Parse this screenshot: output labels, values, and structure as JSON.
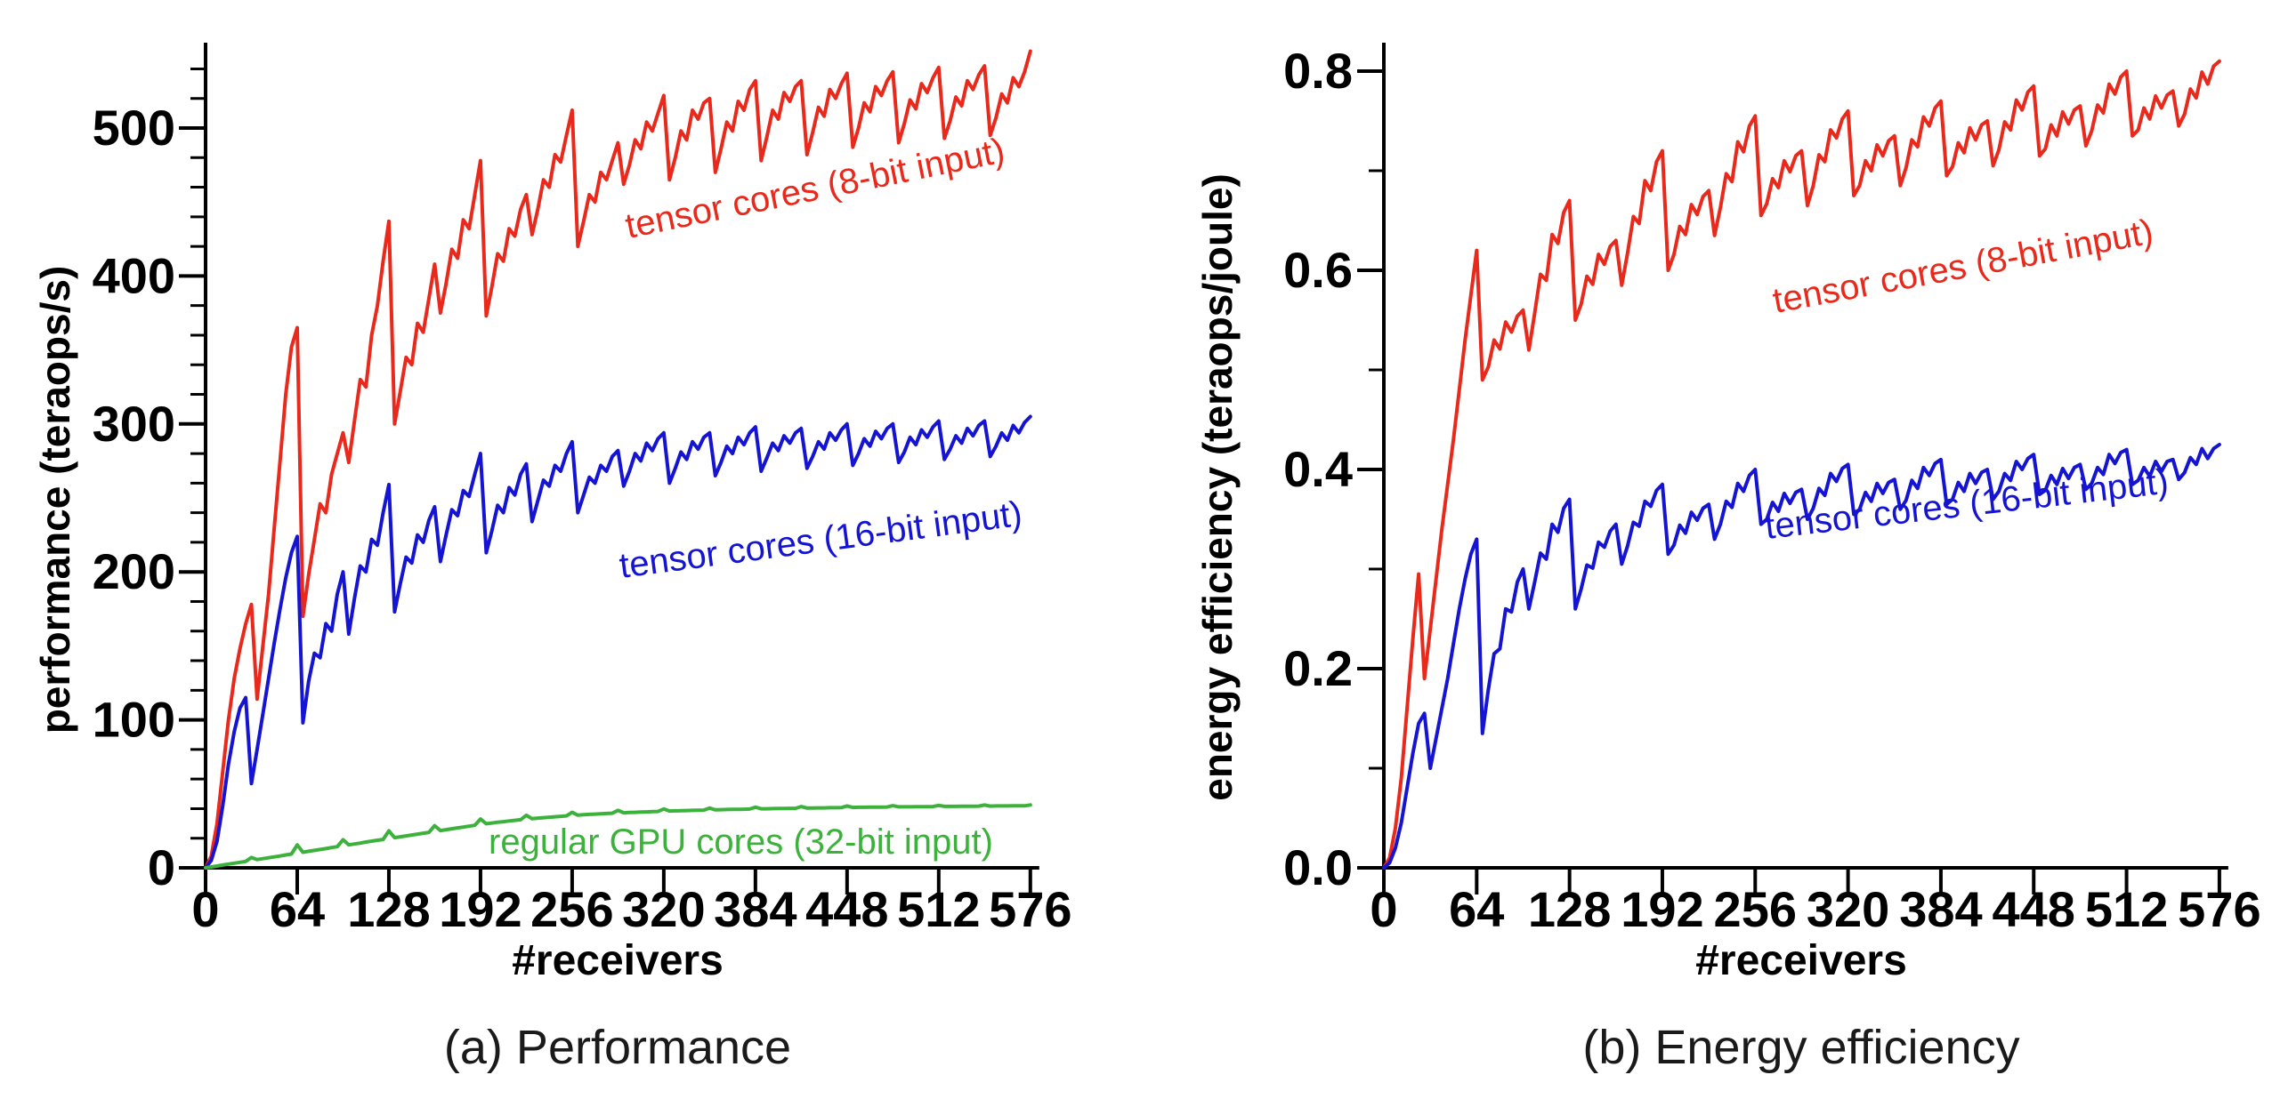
{
  "chart_data": [
    {
      "type": "line",
      "panel": "a",
      "caption": "(a) Performance",
      "xlabel": "#receivers",
      "ylabel": "performance (teraops/s)",
      "xlim": [
        0,
        576
      ],
      "ylim": [
        0,
        557
      ],
      "grid": false,
      "legend_position": "inline-labels",
      "x_ticks": [
        0,
        64,
        128,
        192,
        256,
        320,
        384,
        448,
        512,
        576
      ],
      "y_ticks": [
        [
          0,
          "0"
        ],
        [
          100,
          "100"
        ],
        [
          200,
          "200"
        ],
        [
          300,
          "300"
        ],
        [
          400,
          "400"
        ],
        [
          500,
          "500"
        ]
      ],
      "y_minor": {
        "step": 20,
        "max": 540
      },
      "x_start": 0,
      "x_step": 4,
      "series": [
        {
          "name": "tensor cores (8-bit input)",
          "color": "#e8291c",
          "values": [
            0,
            8,
            30,
            65,
            100,
            128,
            148,
            165,
            178,
            114,
            150,
            185,
            230,
            275,
            320,
            352,
            365,
            170,
            198,
            222,
            246,
            240,
            266,
            280,
            294,
            274,
            302,
            330,
            325,
            360,
            380,
            410,
            437,
            300,
            322,
            345,
            340,
            368,
            362,
            385,
            408,
            375,
            395,
            418,
            412,
            438,
            432,
            455,
            478,
            373,
            393,
            415,
            410,
            432,
            427,
            445,
            455,
            428,
            445,
            465,
            460,
            482,
            477,
            495,
            512,
            420,
            437,
            455,
            450,
            470,
            465,
            478,
            490,
            462,
            475,
            492,
            486,
            504,
            498,
            510,
            522,
            465,
            480,
            498,
            492,
            512,
            506,
            517,
            520,
            470,
            486,
            504,
            498,
            518,
            512,
            526,
            532,
            478,
            494,
            512,
            506,
            524,
            518,
            528,
            532,
            482,
            497,
            514,
            508,
            526,
            520,
            530,
            537,
            487,
            500,
            517,
            511,
            528,
            522,
            532,
            538,
            490,
            503,
            519,
            513,
            530,
            524,
            534,
            541,
            493,
            505,
            521,
            515,
            532,
            526,
            536,
            542,
            495,
            507,
            523,
            517,
            534,
            528,
            538,
            552
          ]
        },
        {
          "name": "tensor cores (16-bit input)",
          "color": "#1414d2",
          "values": [
            0,
            5,
            18,
            42,
            70,
            92,
            108,
            115,
            57,
            80,
            104,
            128,
            152,
            175,
            196,
            213,
            224,
            98,
            126,
            145,
            142,
            165,
            160,
            185,
            200,
            158,
            182,
            204,
            200,
            222,
            218,
            240,
            259,
            173,
            192,
            210,
            206,
            225,
            220,
            235,
            244,
            207,
            225,
            242,
            238,
            255,
            251,
            266,
            280,
            213,
            228,
            245,
            240,
            257,
            252,
            266,
            273,
            234,
            248,
            262,
            258,
            272,
            268,
            280,
            288,
            240,
            252,
            264,
            260,
            272,
            268,
            278,
            282,
            258,
            268,
            280,
            275,
            287,
            282,
            290,
            294,
            260,
            270,
            281,
            276,
            288,
            283,
            291,
            294,
            265,
            274,
            285,
            280,
            291,
            286,
            294,
            298,
            268,
            277,
            287,
            282,
            292,
            287,
            294,
            297,
            270,
            278,
            288,
            283,
            294,
            289,
            296,
            300,
            272,
            280,
            290,
            285,
            295,
            290,
            297,
            300,
            274,
            281,
            291,
            286,
            296,
            291,
            298,
            302,
            276,
            283,
            292,
            287,
            297,
            292,
            299,
            302,
            278,
            285,
            294,
            289,
            299,
            294,
            301,
            305
          ]
        },
        {
          "name": "regular GPU cores (32-bit input)",
          "color": "#3cb23c",
          "values": [
            0,
            0.6,
            1.2,
            1.9,
            2.5,
            3.1,
            3.7,
            4.3,
            7,
            5.6,
            6.2,
            6.8,
            7.4,
            8,
            8.7,
            9.3,
            15.5,
            10.5,
            11.2,
            11.8,
            12.4,
            13,
            13.7,
            14.3,
            19,
            15.5,
            16.1,
            16.7,
            17.4,
            18,
            18.6,
            19.2,
            25,
            20.4,
            21,
            21.6,
            22.2,
            22.8,
            23.4,
            24,
            28.5,
            25.2,
            25.8,
            26.4,
            27,
            27.5,
            28.1,
            28.7,
            33,
            29.8,
            30.3,
            30.8,
            31.2,
            31.7,
            32.1,
            32.5,
            35.5,
            33.2,
            33.6,
            33.9,
            34.2,
            34.5,
            34.8,
            35.1,
            37.5,
            35.6,
            35.9,
            36.1,
            36.3,
            36.5,
            36.7,
            36.9,
            38.8,
            37.2,
            37.4,
            37.5,
            37.7,
            37.8,
            38,
            38.1,
            39.8,
            38.4,
            38.5,
            38.6,
            38.7,
            38.8,
            38.9,
            39,
            40.4,
            39.2,
            39.3,
            39.4,
            39.5,
            39.5,
            39.6,
            39.7,
            41,
            39.9,
            39.9,
            40,
            40.1,
            40.1,
            40.2,
            40.2,
            41.4,
            40.4,
            40.4,
            40.5,
            40.5,
            40.6,
            40.6,
            40.7,
            41.8,
            40.8,
            40.9,
            40.9,
            41,
            41,
            41,
            41.1,
            42,
            41.2,
            41.2,
            41.2,
            41.3,
            41.3,
            41.3,
            41.4,
            42.2,
            41.5,
            41.5,
            41.5,
            41.6,
            41.6,
            41.6,
            41.7,
            42.4,
            41.7,
            41.8,
            41.8,
            41.8,
            41.9,
            41.9,
            41.9,
            42.5
          ]
        }
      ]
    },
    {
      "type": "line",
      "panel": "b",
      "caption": "(b) Energy efficiency",
      "xlabel": "#receivers",
      "ylabel": "energy efficiency (teraops/joule)",
      "xlim": [
        0,
        576
      ],
      "ylim": [
        0,
        0.826
      ],
      "grid": false,
      "legend_position": "inline-labels",
      "x_ticks": [
        0,
        64,
        128,
        192,
        256,
        320,
        384,
        448,
        512,
        576
      ],
      "y_ticks": [
        [
          0,
          "0.0"
        ],
        [
          0.2,
          "0.2"
        ],
        [
          0.4,
          "0.4"
        ],
        [
          0.6,
          "0.6"
        ],
        [
          0.8,
          "0.8"
        ]
      ],
      "y_minor": {
        "step": 0.1,
        "max": 0.8
      },
      "x_start": 0,
      "x_step": 4,
      "series": [
        {
          "name": "tensor cores (8-bit input)",
          "color": "#e8291c",
          "values": [
            0,
            0.01,
            0.04,
            0.09,
            0.16,
            0.23,
            0.295,
            0.19,
            0.24,
            0.29,
            0.34,
            0.385,
            0.43,
            0.48,
            0.53,
            0.575,
            0.62,
            0.49,
            0.503,
            0.53,
            0.521,
            0.548,
            0.538,
            0.554,
            0.56,
            0.52,
            0.557,
            0.596,
            0.59,
            0.636,
            0.627,
            0.658,
            0.67,
            0.55,
            0.566,
            0.594,
            0.586,
            0.616,
            0.606,
            0.624,
            0.63,
            0.585,
            0.617,
            0.654,
            0.647,
            0.69,
            0.68,
            0.709,
            0.72,
            0.6,
            0.616,
            0.644,
            0.636,
            0.666,
            0.656,
            0.674,
            0.68,
            0.635,
            0.663,
            0.697,
            0.689,
            0.729,
            0.719,
            0.745,
            0.755,
            0.655,
            0.667,
            0.692,
            0.683,
            0.71,
            0.699,
            0.715,
            0.72,
            0.665,
            0.685,
            0.716,
            0.709,
            0.741,
            0.733,
            0.752,
            0.76,
            0.675,
            0.685,
            0.71,
            0.7,
            0.726,
            0.715,
            0.73,
            0.735,
            0.685,
            0.703,
            0.731,
            0.724,
            0.754,
            0.745,
            0.763,
            0.77,
            0.695,
            0.704,
            0.728,
            0.718,
            0.743,
            0.731,
            0.746,
            0.75,
            0.705,
            0.721,
            0.749,
            0.741,
            0.771,
            0.761,
            0.779,
            0.785,
            0.715,
            0.722,
            0.746,
            0.735,
            0.759,
            0.747,
            0.761,
            0.765,
            0.725,
            0.74,
            0.766,
            0.758,
            0.787,
            0.777,
            0.794,
            0.8,
            0.735,
            0.741,
            0.763,
            0.752,
            0.775,
            0.763,
            0.776,
            0.78,
            0.745,
            0.757,
            0.782,
            0.773,
            0.799,
            0.787,
            0.805,
            0.81
          ]
        },
        {
          "name": "tensor cores (16-bit input)",
          "color": "#1414d2",
          "values": [
            0,
            0.005,
            0.02,
            0.045,
            0.08,
            0.115,
            0.145,
            0.155,
            0.1,
            0.13,
            0.16,
            0.19,
            0.225,
            0.26,
            0.29,
            0.315,
            0.33,
            0.135,
            0.179,
            0.215,
            0.22,
            0.26,
            0.257,
            0.287,
            0.3,
            0.26,
            0.287,
            0.316,
            0.31,
            0.345,
            0.337,
            0.361,
            0.37,
            0.26,
            0.28,
            0.304,
            0.301,
            0.327,
            0.322,
            0.338,
            0.345,
            0.305,
            0.323,
            0.347,
            0.343,
            0.368,
            0.363,
            0.379,
            0.385,
            0.315,
            0.324,
            0.344,
            0.336,
            0.357,
            0.349,
            0.361,
            0.365,
            0.33,
            0.345,
            0.368,
            0.362,
            0.386,
            0.378,
            0.394,
            0.4,
            0.345,
            0.35,
            0.367,
            0.358,
            0.376,
            0.366,
            0.377,
            0.38,
            0.35,
            0.361,
            0.381,
            0.374,
            0.396,
            0.388,
            0.401,
            0.405,
            0.355,
            0.36,
            0.377,
            0.368,
            0.386,
            0.376,
            0.387,
            0.39,
            0.36,
            0.369,
            0.389,
            0.381,
            0.402,
            0.394,
            0.406,
            0.41,
            0.365,
            0.37,
            0.387,
            0.378,
            0.396,
            0.386,
            0.397,
            0.4,
            0.37,
            0.378,
            0.396,
            0.389,
            0.408,
            0.4,
            0.411,
            0.415,
            0.375,
            0.379,
            0.394,
            0.385,
            0.401,
            0.391,
            0.402,
            0.405,
            0.38,
            0.386,
            0.402,
            0.395,
            0.415,
            0.406,
            0.417,
            0.42,
            0.385,
            0.389,
            0.402,
            0.393,
            0.408,
            0.398,
            0.408,
            0.41,
            0.39,
            0.397,
            0.412,
            0.405,
            0.421,
            0.411,
            0.421,
            0.425
          ]
        }
      ]
    }
  ]
}
